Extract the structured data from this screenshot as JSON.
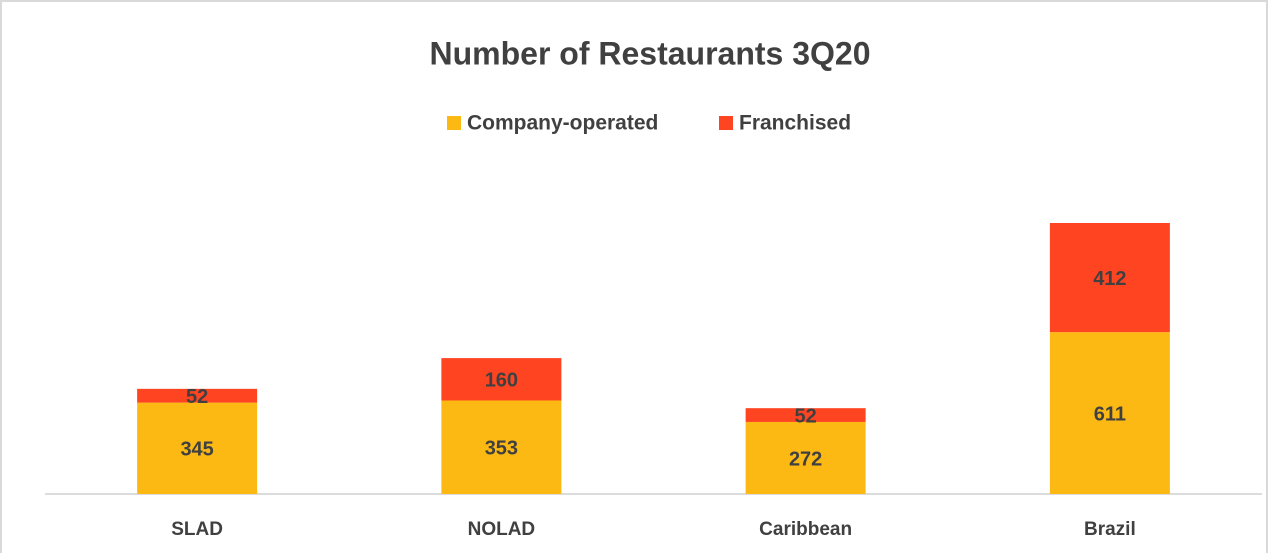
{
  "chart_data": {
    "type": "stacked_bar",
    "title": "Number of Restaurants 3Q20",
    "categories": [
      "SLAD",
      "NOLAD",
      "Caribbean",
      "Brazil"
    ],
    "series": [
      {
        "name": "Company-operated",
        "color": "#fdb913",
        "values": [
          345,
          353,
          272,
          611
        ]
      },
      {
        "name": "Franchised",
        "color": "#ff4422",
        "values": [
          52,
          160,
          52,
          412
        ]
      }
    ],
    "legend": "top"
  }
}
